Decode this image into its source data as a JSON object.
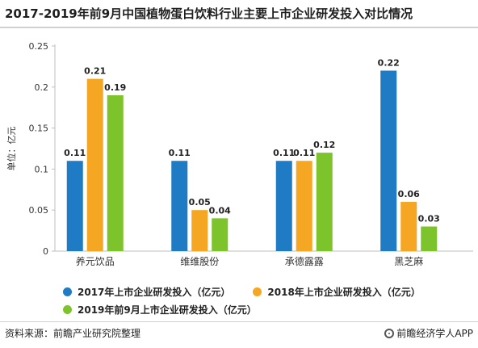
{
  "title": "2017-2019年前9月中国植物蛋白饮料行业主要上市企业研发投入对比情况",
  "source": "资料来源：前瞻产业研究院整理",
  "credit": "前瞻经济学人APP",
  "colors": {
    "series_2017": "#1f7cc4",
    "series_2018": "#f5a623",
    "series_2019": "#7dc42c",
    "axis": "#bfbfbf",
    "grid": "#e6e6e6"
  },
  "chart_data": {
    "type": "bar",
    "title": "2017-2019年前9月中国植物蛋白饮料行业主要上市企业研发投入对比情况",
    "ylabel": "单位：亿元",
    "xlabel": "",
    "ylim": [
      0,
      0.25
    ],
    "yticks": [
      "0",
      "0.05",
      "0.1",
      "0.15",
      "0.2",
      "0.25"
    ],
    "grid": false,
    "legend_position": "bottom",
    "categories": [
      "养元饮品",
      "维维股份",
      "承德露露",
      "黑芝麻"
    ],
    "series": [
      {
        "name": "2017年上市企业研发投入（亿元）",
        "values": [
          0.11,
          0.11,
          0.11,
          0.22
        ],
        "labels": [
          "0.11",
          "0.11",
          "0.11",
          "0.22"
        ]
      },
      {
        "name": "2018年上市企业研发投入（亿元）",
        "values": [
          0.21,
          0.05,
          0.11,
          0.06
        ],
        "labels": [
          "0.21",
          "0.05",
          "0.11",
          "0.06"
        ]
      },
      {
        "name": "2019年前9月上市企业研发投入（亿元）",
        "values": [
          0.19,
          0.04,
          0.12,
          0.03
        ],
        "labels": [
          "0.19",
          "0.04",
          "0.12",
          "0.03"
        ]
      }
    ]
  }
}
